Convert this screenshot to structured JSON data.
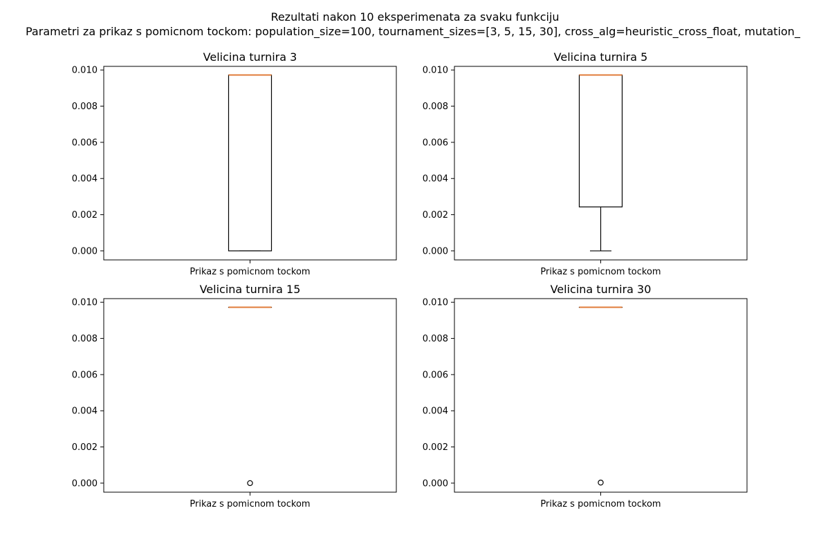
{
  "figure": {
    "suptitle_line1": "Rezultati nakon 10 eksperimenata za svaku funkciju",
    "suptitle_line2": "Parametri za prikaz s pomicnom tockom: population_size=100, tournament_sizes=[3, 5, 15, 30], cross_alg=heuristic_cross_float, mutation_"
  },
  "colors": {
    "box": "#000000",
    "median": "#e07b39",
    "flier": "#000000",
    "background": "#ffffff"
  },
  "chart_data": [
    {
      "type": "box",
      "title": "Velicina turnira 3",
      "xlabel": "",
      "ylabel": "",
      "categories": [
        "Prikaz s pomicnom tockom"
      ],
      "ylim": [
        -0.0005,
        0.0102
      ],
      "yticks": [
        "0.000",
        "0.002",
        "0.004",
        "0.006",
        "0.008",
        "0.010"
      ],
      "ytick_values": [
        0.0,
        0.002,
        0.004,
        0.006,
        0.008,
        0.01
      ],
      "box": {
        "whisker_low": 0.0,
        "q1": 0.0,
        "median": 0.00972,
        "q3": 0.00972,
        "whisker_high": 0.00972,
        "fliers": []
      }
    },
    {
      "type": "box",
      "title": "Velicina turnira 5",
      "xlabel": "",
      "ylabel": "",
      "categories": [
        "Prikaz s pomicnom tockom"
      ],
      "ylim": [
        -0.0005,
        0.0102
      ],
      "yticks": [
        "0.000",
        "0.002",
        "0.004",
        "0.006",
        "0.008",
        "0.010"
      ],
      "ytick_values": [
        0.0,
        0.002,
        0.004,
        0.006,
        0.008,
        0.01
      ],
      "box": {
        "whisker_low": 0.0,
        "q1": 0.00243,
        "median": 0.00972,
        "q3": 0.00972,
        "whisker_high": 0.00972,
        "fliers": []
      }
    },
    {
      "type": "box",
      "title": "Velicina turnira 15",
      "xlabel": "",
      "ylabel": "",
      "categories": [
        "Prikaz s pomicnom tockom"
      ],
      "ylim": [
        -0.0005,
        0.0102
      ],
      "yticks": [
        "0.000",
        "0.002",
        "0.004",
        "0.006",
        "0.008",
        "0.010"
      ],
      "ytick_values": [
        0.0,
        0.002,
        0.004,
        0.006,
        0.008,
        0.01
      ],
      "box": {
        "whisker_low": 0.00972,
        "q1": 0.00972,
        "median": 0.00972,
        "q3": 0.00972,
        "whisker_high": 0.00972,
        "fliers": [
          0.0
        ]
      }
    },
    {
      "type": "box",
      "title": "Velicina turnira 30",
      "xlabel": "",
      "ylabel": "",
      "categories": [
        "Prikaz s pomicnom tockom"
      ],
      "ylim": [
        -0.0005,
        0.0102
      ],
      "yticks": [
        "0.000",
        "0.002",
        "0.004",
        "0.006",
        "0.008",
        "0.010"
      ],
      "ytick_values": [
        0.0,
        0.002,
        0.004,
        0.006,
        0.008,
        0.01
      ],
      "box": {
        "whisker_low": 0.00972,
        "q1": 0.00972,
        "median": 0.00972,
        "q3": 0.00972,
        "whisker_high": 0.00972,
        "fliers": [
          3e-05
        ]
      }
    }
  ]
}
